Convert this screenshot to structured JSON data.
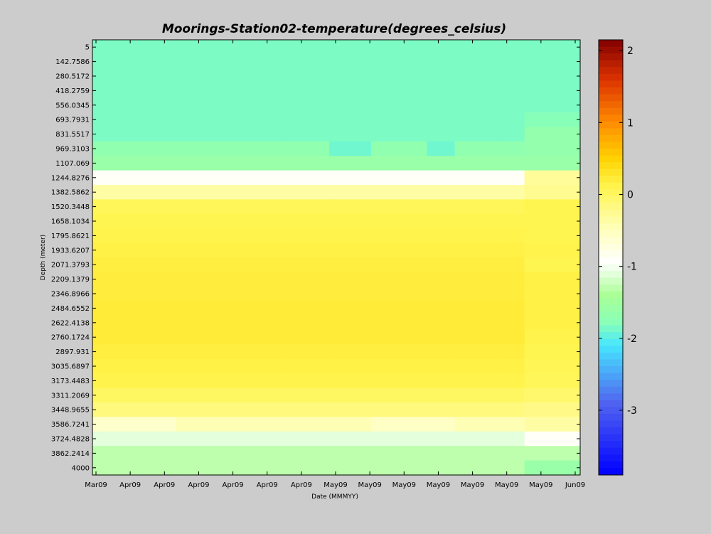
{
  "chart_data": {
    "type": "heatmap",
    "title": "Moorings-Station02-temperature(degrees_celsius)",
    "xlabel": "Date (MMMYY)",
    "ylabel": "Depth (meter)",
    "x_tick_labels": [
      "Mar09",
      "Apr09",
      "Apr09",
      "Apr09",
      "Apr09",
      "Apr09",
      "Apr09",
      "May09",
      "May09",
      "May09",
      "May09",
      "May09",
      "May09",
      "May09",
      "Jun09"
    ],
    "y_tick_labels": [
      "5",
      "142.7586",
      "280.5172",
      "418.2759",
      "556.0345",
      "693.7931",
      "831.5517",
      "969.3103",
      "1107.069",
      "1244.8276",
      "1382.5862",
      "1520.3448",
      "1658.1034",
      "1795.8621",
      "1933.6207",
      "2071.3793",
      "2209.1379",
      "2346.8966",
      "2484.6552",
      "2622.4138",
      "2760.1724",
      "2897.931",
      "3035.6897",
      "3173.4483",
      "3311.2069",
      "3448.9655",
      "3586.7241",
      "3724.4828",
      "3862.2414",
      "4000"
    ],
    "colorbar": {
      "ticks": [
        "2",
        "1",
        "0",
        "-1",
        "-2",
        "-3"
      ],
      "range": [
        -3.9,
        2.15
      ],
      "colormap": "jet-like with white near -0.95"
    },
    "segment_columns": [
      0,
      12,
      20,
      28,
      34,
      40,
      48,
      52,
      58,
      62,
      70
    ],
    "n_columns": 70,
    "rows": [
      {
        "depth": "5",
        "segments": [
          -1.85,
          -1.85,
          -1.85,
          -1.85,
          -1.85,
          -1.85,
          -1.85,
          -1.85,
          -1.85,
          -1.85
        ]
      },
      {
        "depth": "142.7586",
        "segments": [
          -1.85,
          -1.85,
          -1.85,
          -1.85,
          -1.85,
          -1.85,
          -1.85,
          -1.85,
          -1.85,
          -1.85
        ]
      },
      {
        "depth": "280.5172",
        "segments": [
          -1.85,
          -1.85,
          -1.85,
          -1.85,
          -1.85,
          -1.85,
          -1.85,
          -1.85,
          -1.85,
          -1.85
        ]
      },
      {
        "depth": "418.2759",
        "segments": [
          -1.85,
          -1.85,
          -1.85,
          -1.85,
          -1.85,
          -1.85,
          -1.85,
          -1.85,
          -1.85,
          -1.85
        ]
      },
      {
        "depth": "556.0345",
        "segments": [
          -1.85,
          -1.85,
          -1.85,
          -1.85,
          -1.85,
          -1.85,
          -1.85,
          -1.85,
          -1.85,
          -1.85
        ]
      },
      {
        "depth": "693.7931",
        "segments": [
          -1.85,
          -1.85,
          -1.85,
          -1.85,
          -1.85,
          -1.85,
          -1.85,
          -1.85,
          -1.85,
          -1.8
        ]
      },
      {
        "depth": "831.5517",
        "segments": [
          -1.85,
          -1.85,
          -1.85,
          -1.85,
          -1.85,
          -1.85,
          -1.85,
          -1.85,
          -1.85,
          -1.65
        ]
      },
      {
        "depth": "969.3103",
        "segments": [
          -1.7,
          -1.7,
          -1.7,
          -1.7,
          -1.9,
          -1.7,
          -1.9,
          -1.7,
          -1.7,
          -1.65
        ]
      },
      {
        "depth": "1107.069",
        "segments": [
          -1.6,
          -1.6,
          -1.6,
          -1.6,
          -1.6,
          -1.6,
          -1.6,
          -1.6,
          -1.6,
          -1.6
        ]
      },
      {
        "depth": "1244.8276",
        "segments": [
          -0.9,
          -0.9,
          -0.9,
          -0.9,
          -0.9,
          -0.9,
          -0.9,
          -0.9,
          -0.9,
          -0.3
        ]
      },
      {
        "depth": "1382.5862",
        "segments": [
          -0.35,
          -0.35,
          -0.35,
          -0.35,
          -0.35,
          -0.35,
          -0.35,
          -0.35,
          -0.35,
          -0.25
        ]
      },
      {
        "depth": "1520.3448",
        "segments": [
          0.05,
          0.05,
          0.05,
          0.05,
          0.05,
          0.05,
          0.05,
          0.05,
          0.05,
          0.1
        ]
      },
      {
        "depth": "1658.1034",
        "segments": [
          0.1,
          0.1,
          0.1,
          0.1,
          0.1,
          0.1,
          0.1,
          0.1,
          0.1,
          0.1
        ]
      },
      {
        "depth": "1795.8621",
        "segments": [
          0.12,
          0.12,
          0.12,
          0.12,
          0.12,
          0.12,
          0.12,
          0.12,
          0.12,
          0.1
        ]
      },
      {
        "depth": "1933.6207",
        "segments": [
          0.15,
          0.15,
          0.15,
          0.15,
          0.15,
          0.15,
          0.15,
          0.15,
          0.15,
          0.12
        ]
      },
      {
        "depth": "2071.3793",
        "segments": [
          0.18,
          0.18,
          0.18,
          0.18,
          0.18,
          0.18,
          0.18,
          0.18,
          0.18,
          0.1
        ]
      },
      {
        "depth": "2209.1379",
        "segments": [
          0.2,
          0.2,
          0.2,
          0.2,
          0.2,
          0.2,
          0.2,
          0.2,
          0.2,
          0.15
        ]
      },
      {
        "depth": "2346.8966",
        "segments": [
          0.2,
          0.2,
          0.2,
          0.2,
          0.2,
          0.2,
          0.2,
          0.2,
          0.2,
          0.15
        ]
      },
      {
        "depth": "2484.6552",
        "segments": [
          0.22,
          0.22,
          0.22,
          0.22,
          0.22,
          0.22,
          0.22,
          0.22,
          0.22,
          0.15
        ]
      },
      {
        "depth": "2622.4138",
        "segments": [
          0.22,
          0.22,
          0.22,
          0.22,
          0.22,
          0.22,
          0.22,
          0.22,
          0.22,
          0.15
        ]
      },
      {
        "depth": "2760.1724",
        "segments": [
          0.22,
          0.22,
          0.22,
          0.22,
          0.22,
          0.22,
          0.22,
          0.22,
          0.22,
          0.12
        ]
      },
      {
        "depth": "2897.931",
        "segments": [
          0.18,
          0.18,
          0.18,
          0.18,
          0.18,
          0.18,
          0.18,
          0.18,
          0.18,
          0.1
        ]
      },
      {
        "depth": "3035.6897",
        "segments": [
          0.15,
          0.15,
          0.15,
          0.15,
          0.15,
          0.15,
          0.15,
          0.15,
          0.15,
          0.08
        ]
      },
      {
        "depth": "3173.4483",
        "segments": [
          0.12,
          0.12,
          0.12,
          0.12,
          0.12,
          0.12,
          0.12,
          0.12,
          0.12,
          0.05
        ]
      },
      {
        "depth": "3311.2069",
        "segments": [
          0.0,
          0.0,
          0.0,
          0.0,
          0.0,
          0.0,
          0.0,
          0.0,
          0.0,
          -0.05
        ]
      },
      {
        "depth": "3448.9655",
        "segments": [
          -0.15,
          -0.15,
          -0.15,
          -0.15,
          -0.15,
          -0.15,
          -0.15,
          -0.15,
          -0.15,
          -0.2
        ]
      },
      {
        "depth": "3586.7241",
        "segments": [
          -0.6,
          -0.45,
          -0.45,
          -0.45,
          -0.45,
          -0.55,
          -0.55,
          -0.45,
          -0.45,
          -0.35
        ]
      },
      {
        "depth": "3724.4828",
        "segments": [
          -1.1,
          -1.1,
          -1.1,
          -1.1,
          -1.1,
          -1.1,
          -1.1,
          -1.1,
          -1.1,
          -0.9
        ]
      },
      {
        "depth": "3862.2414",
        "segments": [
          -1.3,
          -1.3,
          -1.3,
          -1.3,
          -1.3,
          -1.3,
          -1.3,
          -1.3,
          -1.3,
          -1.3
        ]
      },
      {
        "depth": "4000",
        "segments": [
          -1.3,
          -1.3,
          -1.3,
          -1.3,
          -1.3,
          -1.3,
          -1.3,
          -1.3,
          -1.3,
          -1.6
        ]
      }
    ]
  }
}
